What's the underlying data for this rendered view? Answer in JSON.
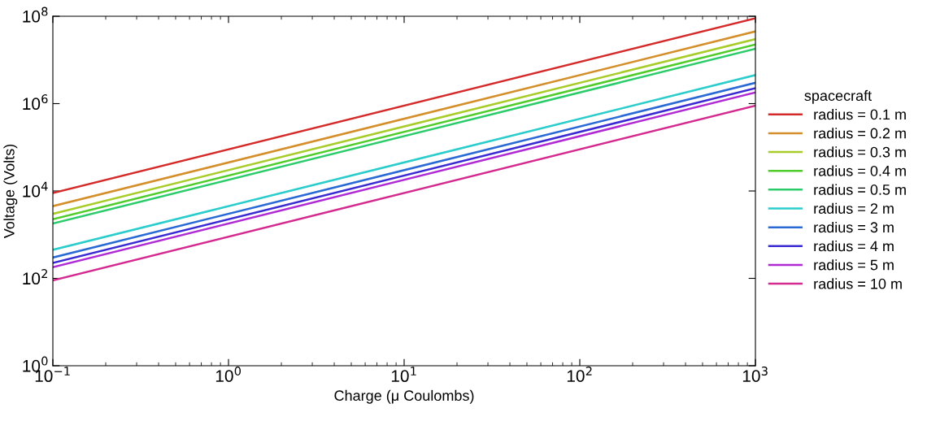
{
  "chart_data": {
    "type": "line",
    "xlabel": "Charge (μ Coulombs)",
    "ylabel": "Voltage (Volts)",
    "legend_title": "spacecraft",
    "log": "xy",
    "legend": "right",
    "grid": false,
    "x": [
      0.1,
      1000
    ],
    "xlim": [
      0.1,
      1000
    ],
    "ylim": [
      1,
      100000000
    ],
    "xticks": [
      {
        "value": 0.1,
        "label": "10$^{−1}$"
      },
      {
        "value": 1,
        "label": "10$^{0}$"
      },
      {
        "value": 10,
        "label": "10$^{1}$"
      },
      {
        "value": 100,
        "label": "10$^{2}$"
      },
      {
        "value": 1000,
        "label": "10$^{3}$"
      }
    ],
    "yticks": [
      {
        "value": 1,
        "label": "10$^{0}$"
      },
      {
        "value": 100,
        "label": "10$^{2}$"
      },
      {
        "value": 10000,
        "label": "10$^{4}$"
      },
      {
        "value": 1000000,
        "label": "10$^{6}$"
      },
      {
        "value": 100000000,
        "label": "10$^{8}$"
      }
    ],
    "series": [
      {
        "name": "radius = 0.1 m",
        "color": "#d42a2a",
        "values": [
          9000,
          90000000
        ]
      },
      {
        "name": "radius = 0.2 m",
        "color": "#d48f2a",
        "values": [
          4500,
          45000000
        ]
      },
      {
        "name": "radius = 0.3 m",
        "color": "#a8cc2a",
        "values": [
          3000,
          30000000
        ]
      },
      {
        "name": "radius = 0.4 m",
        "color": "#4fcc2a",
        "values": [
          2250,
          22500000
        ]
      },
      {
        "name": "radius = 0.5 m",
        "color": "#2acc6a",
        "values": [
          1800,
          18000000
        ]
      },
      {
        "name": "radius = 2 m",
        "color": "#2acccc",
        "values": [
          450,
          4500000
        ]
      },
      {
        "name": "radius = 3 m",
        "color": "#2a6ad4",
        "values": [
          300,
          3000000
        ]
      },
      {
        "name": "radius = 4 m",
        "color": "#3a2ad4",
        "values": [
          225,
          2250000
        ]
      },
      {
        "name": "radius = 5 m",
        "color": "#b02ad4",
        "values": [
          180,
          1800000
        ]
      },
      {
        "name": "radius = 10 m",
        "color": "#d42a8f",
        "values": [
          90,
          900000
        ]
      }
    ]
  }
}
